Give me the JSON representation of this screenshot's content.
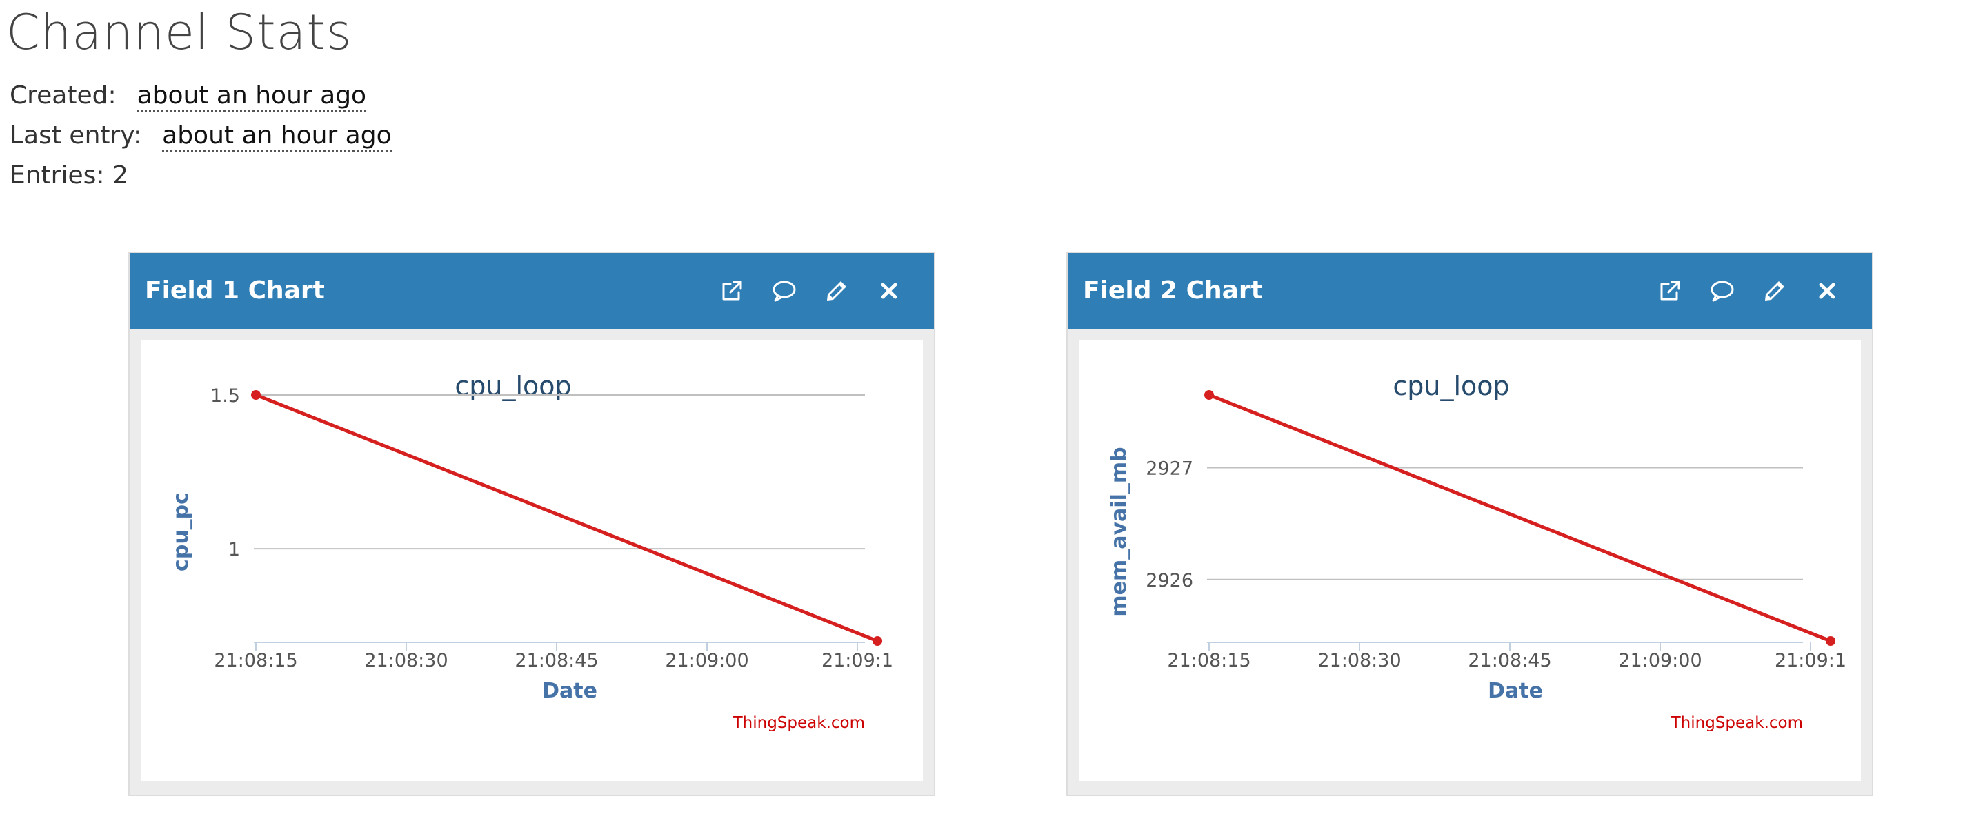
{
  "page": {
    "title": "Channel Stats"
  },
  "stats": {
    "created_label": "Created:",
    "created_value": "about an hour ago",
    "last_entry_label": "Last entry:",
    "last_entry_value": "about an hour ago",
    "entries_text": "Entries: 2"
  },
  "panels": [
    {
      "title": "Field 1 Chart",
      "tools": [
        "external-link-icon",
        "comment-icon",
        "pencil-icon",
        "close-icon"
      ]
    },
    {
      "title": "Field 2 Chart",
      "tools": [
        "external-link-icon",
        "comment-icon",
        "pencil-icon",
        "close-icon"
      ]
    }
  ],
  "colors": {
    "header_blue": "#2f7eb5",
    "series_red": "#d62020",
    "axis_label_blue": "#4572a7",
    "title_blue": "#274b6d",
    "credit_red": "#cc0000"
  },
  "chart_data": [
    {
      "type": "line",
      "title": "cpu_loop",
      "xlabel": "Date",
      "ylabel": "cpu_pc",
      "credit": "ThingSpeak.com",
      "x": [
        "21:08:15",
        "21:09:17"
      ],
      "series": [
        {
          "values": [
            1.5,
            0.7
          ]
        }
      ],
      "x_ticks": [
        "21:08:15",
        "21:08:30",
        "21:08:45",
        "21:09:00",
        "21:09:1"
      ],
      "y_ticks": [
        {
          "value": 1.5,
          "label": "1.5"
        },
        {
          "value": 1,
          "label": "1"
        }
      ],
      "ylim": [
        0.7,
        1.5
      ],
      "grid": true,
      "legend": "none"
    },
    {
      "type": "line",
      "title": "cpu_loop",
      "xlabel": "Date",
      "ylabel": "mem_avail_mb",
      "credit": "ThingSpeak.com",
      "x": [
        "21:08:15",
        "21:09:17"
      ],
      "series": [
        {
          "values": [
            2927.65,
            2925.45
          ]
        }
      ],
      "x_ticks": [
        "21:08:15",
        "21:08:30",
        "21:08:45",
        "21:09:00",
        "21:09:1"
      ],
      "y_ticks": [
        {
          "value": 2927,
          "label": "2927"
        },
        {
          "value": 2926,
          "label": "2926"
        }
      ],
      "ylim": [
        2925.45,
        2927.65
      ],
      "grid": true,
      "legend": "none"
    }
  ]
}
